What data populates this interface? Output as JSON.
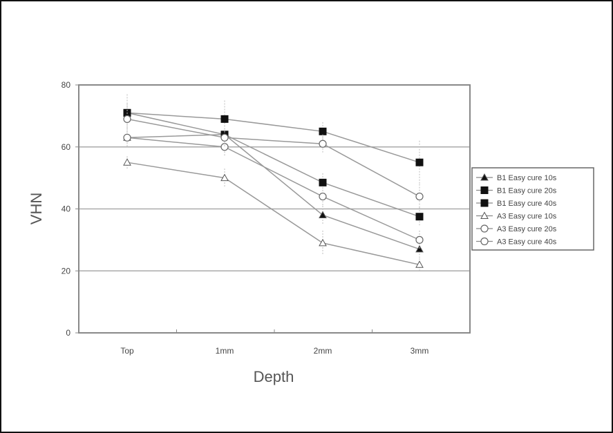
{
  "chart_data": {
    "type": "line",
    "title": "",
    "xlabel": "Depth",
    "ylabel": "VHN",
    "categories": [
      "Top",
      "1mm",
      "2mm",
      "3mm"
    ],
    "ylim": [
      0,
      80
    ],
    "yticks": [
      0,
      20,
      40,
      60,
      80
    ],
    "grid": true,
    "legend_position": "right",
    "series": [
      {
        "name": "B1 Easy cure 10s",
        "marker": "triangle-filled",
        "values": [
          63,
          64,
          38,
          27
        ],
        "errors": [
          3,
          3,
          3,
          3
        ]
      },
      {
        "name": "B1 Easy cure 20s",
        "marker": "square-filled",
        "values": [
          71,
          64,
          48.5,
          37.5
        ],
        "errors": [
          3,
          3,
          3,
          3
        ]
      },
      {
        "name": "B1 Easy cure 40s",
        "marker": "square-filled",
        "values": [
          71,
          69,
          65,
          55
        ],
        "errors": [
          6,
          6,
          3,
          7
        ]
      },
      {
        "name": "A3 Easy cure 10s",
        "marker": "triangle-open",
        "values": [
          55,
          50,
          29,
          22
        ],
        "errors": [
          2,
          3,
          4,
          2
        ]
      },
      {
        "name": "A3 Easy cure 20s",
        "marker": "circle-open",
        "values": [
          63,
          60,
          44,
          30
        ],
        "errors": [
          2,
          3,
          3,
          3
        ]
      },
      {
        "name": "A3 Easy cure 40s",
        "marker": "circle-open",
        "values": [
          69,
          63,
          61,
          44
        ],
        "errors": [
          3,
          3,
          3,
          4
        ]
      }
    ]
  }
}
